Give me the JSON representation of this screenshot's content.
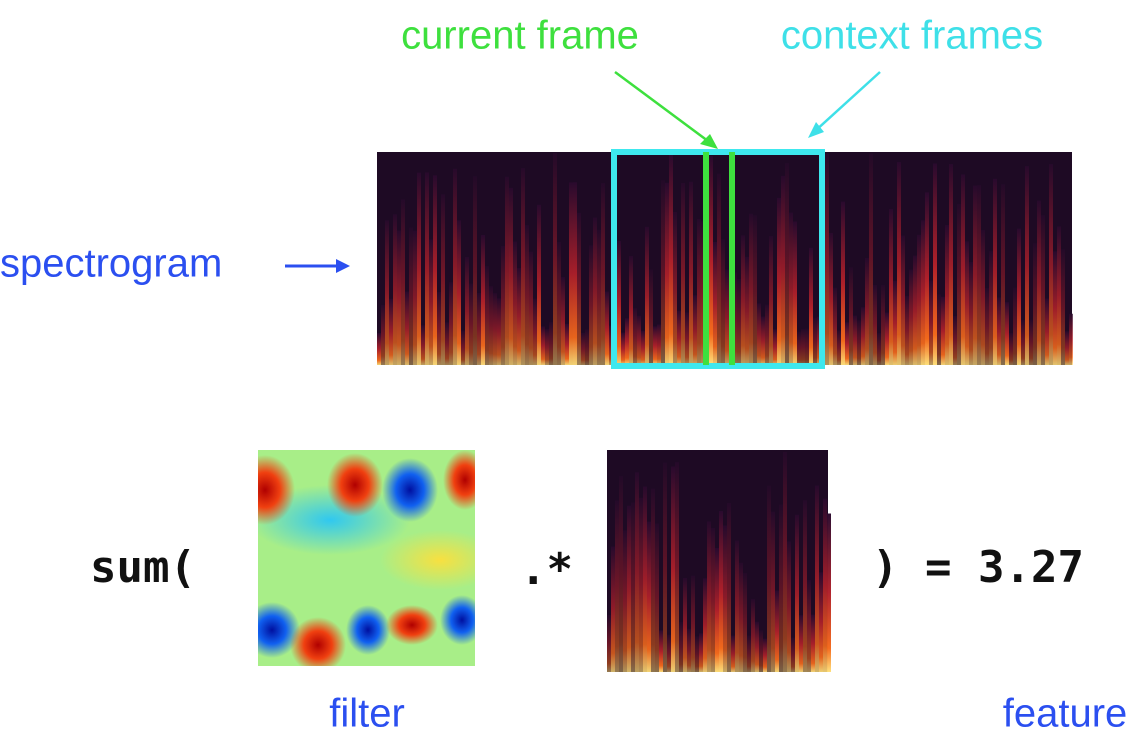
{
  "labels": {
    "current_frame": "current frame",
    "context_frames": "context frames",
    "spectrogram": "spectrogram",
    "filter": "filter",
    "feature": "feature"
  },
  "equation": {
    "open": "sum(",
    "op": ".*",
    "close": ")",
    "equals": "=",
    "result": "3.27"
  }
}
